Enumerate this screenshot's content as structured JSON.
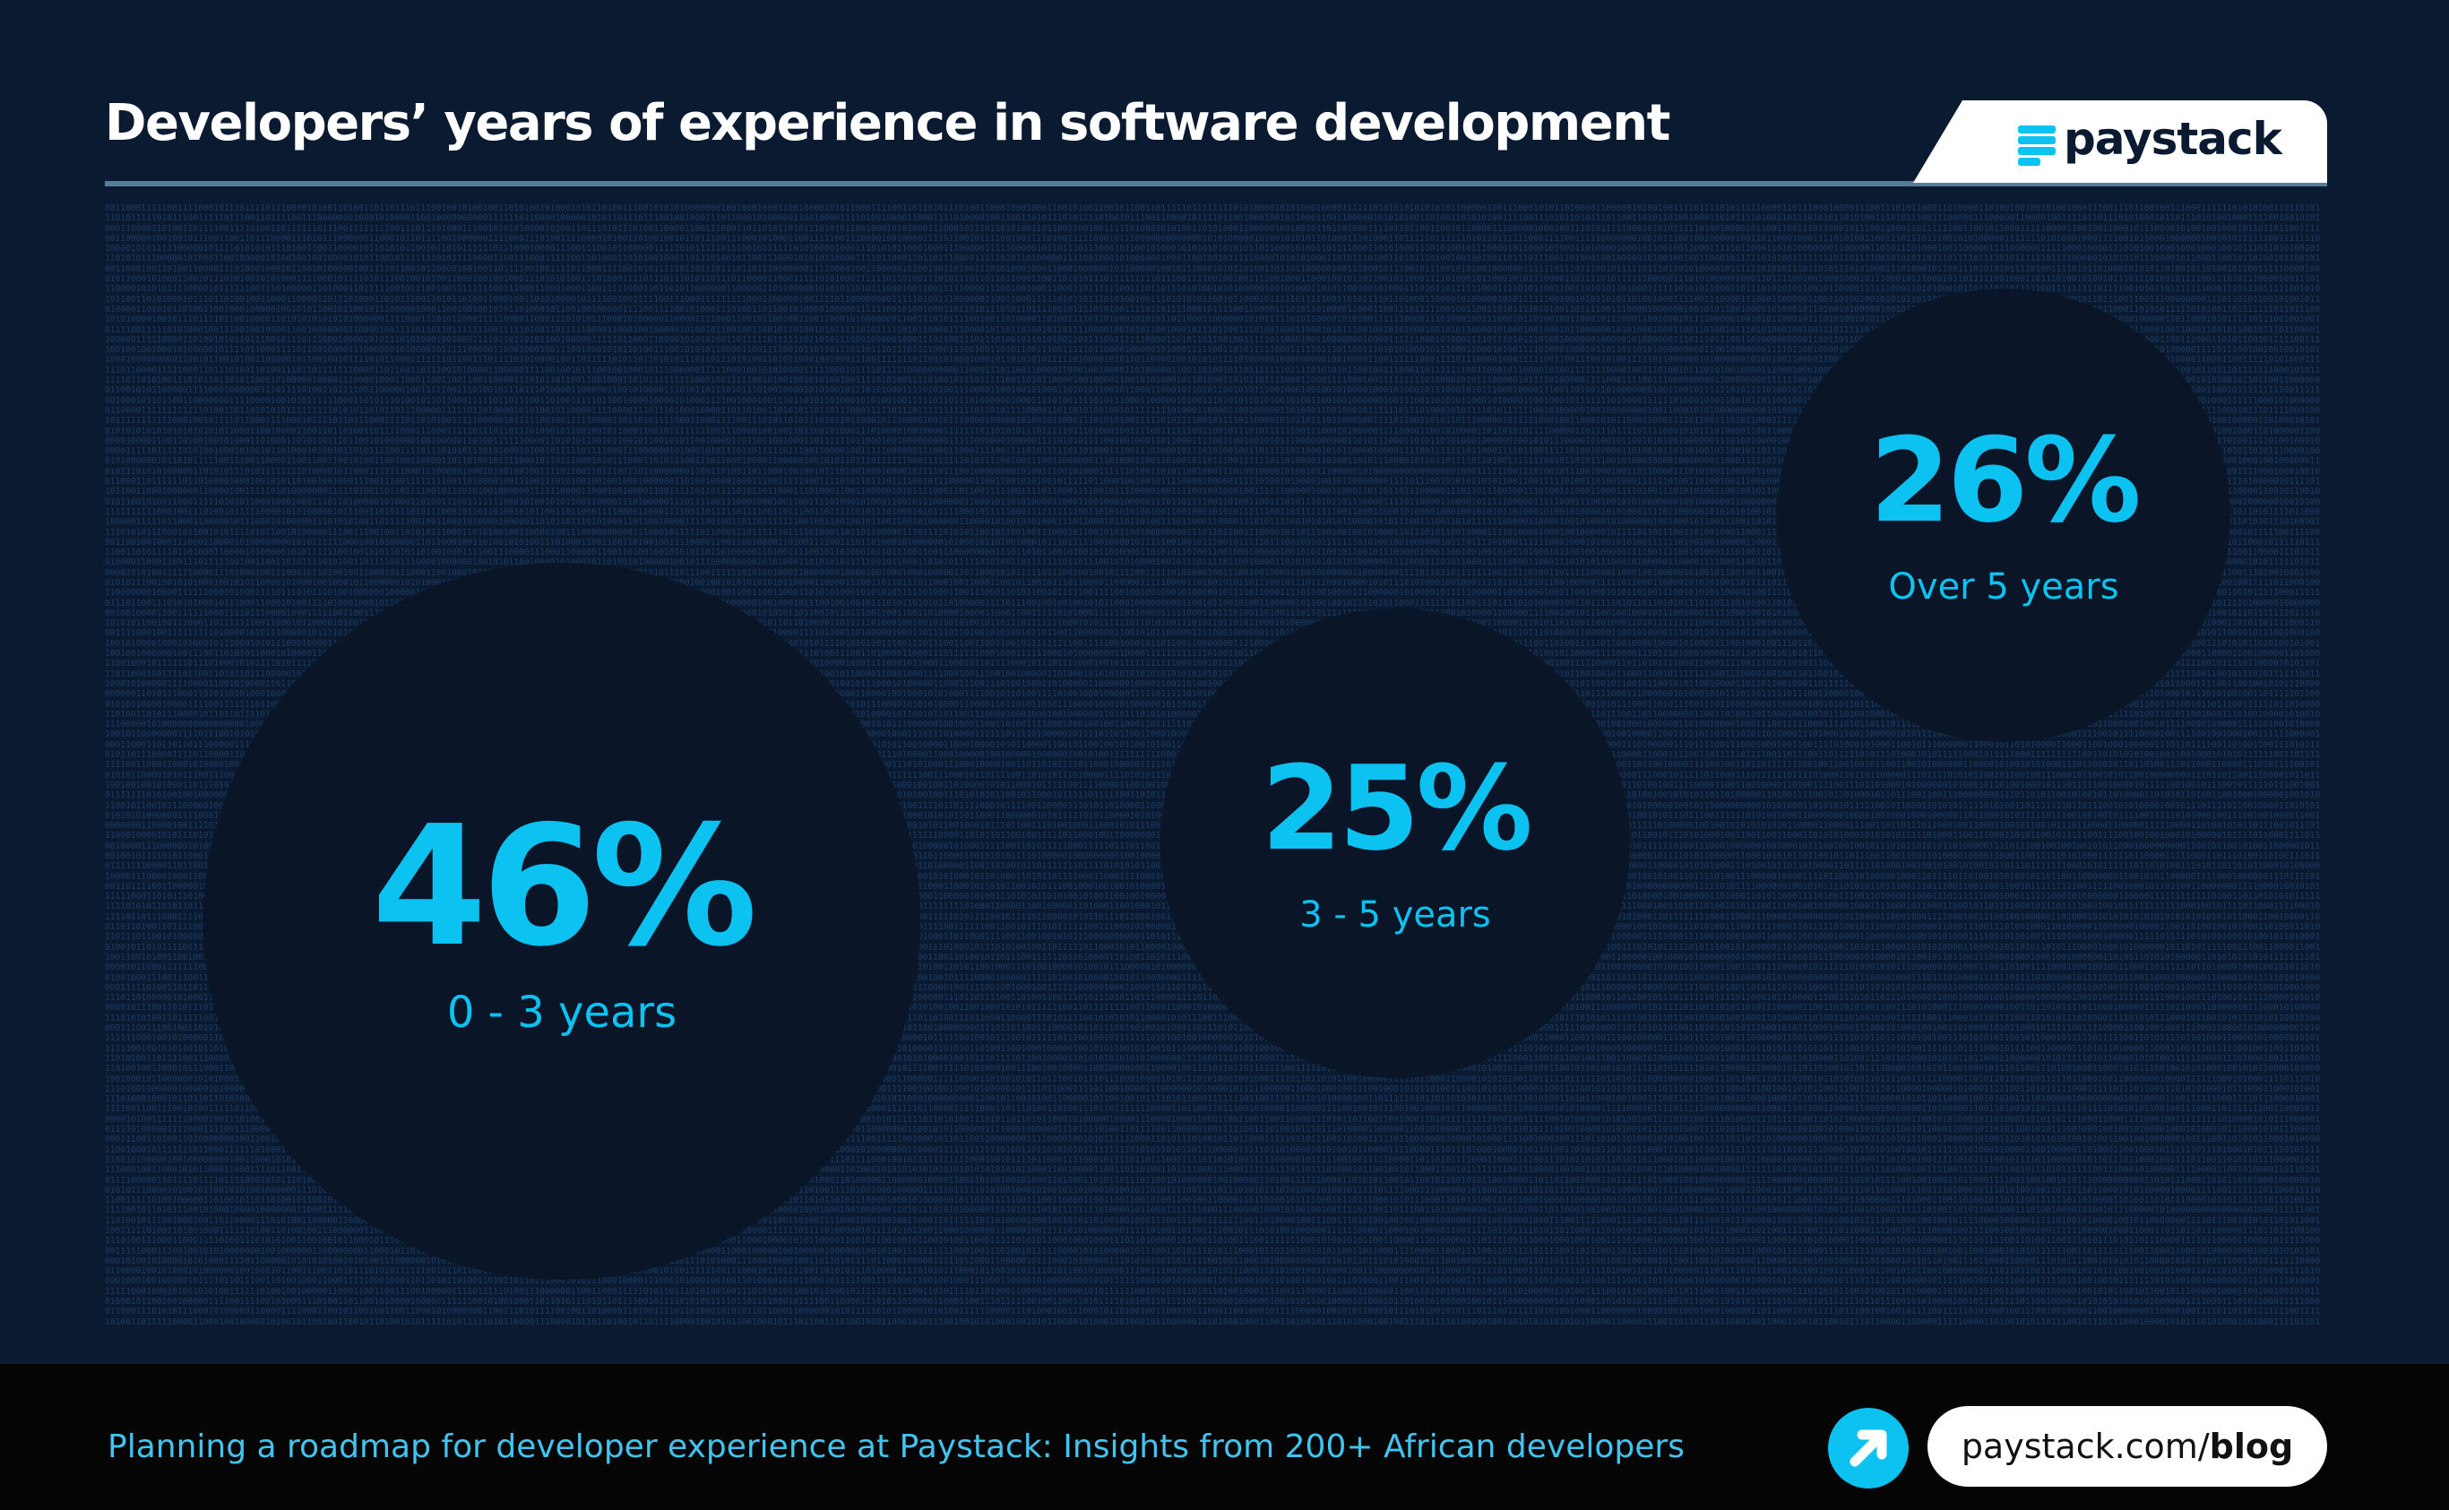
{
  "header": {
    "title": "Developers’ years of experience in software development",
    "logo_text": "paystack"
  },
  "stats": [
    {
      "value": "46%",
      "label": "0 - 3 years"
    },
    {
      "value": "25%",
      "label": "3 - 5 years"
    },
    {
      "value": "26%",
      "label": "Over 5 years"
    }
  ],
  "footer": {
    "caption": "Planning a roadmap for developer experience at Paystack: Insights from 200+ African developers",
    "link_domain": "paystack.com/",
    "link_path": "blog"
  },
  "colors": {
    "background": "#0a1a30",
    "accent": "#0bc2f1",
    "footer": "#050505"
  }
}
